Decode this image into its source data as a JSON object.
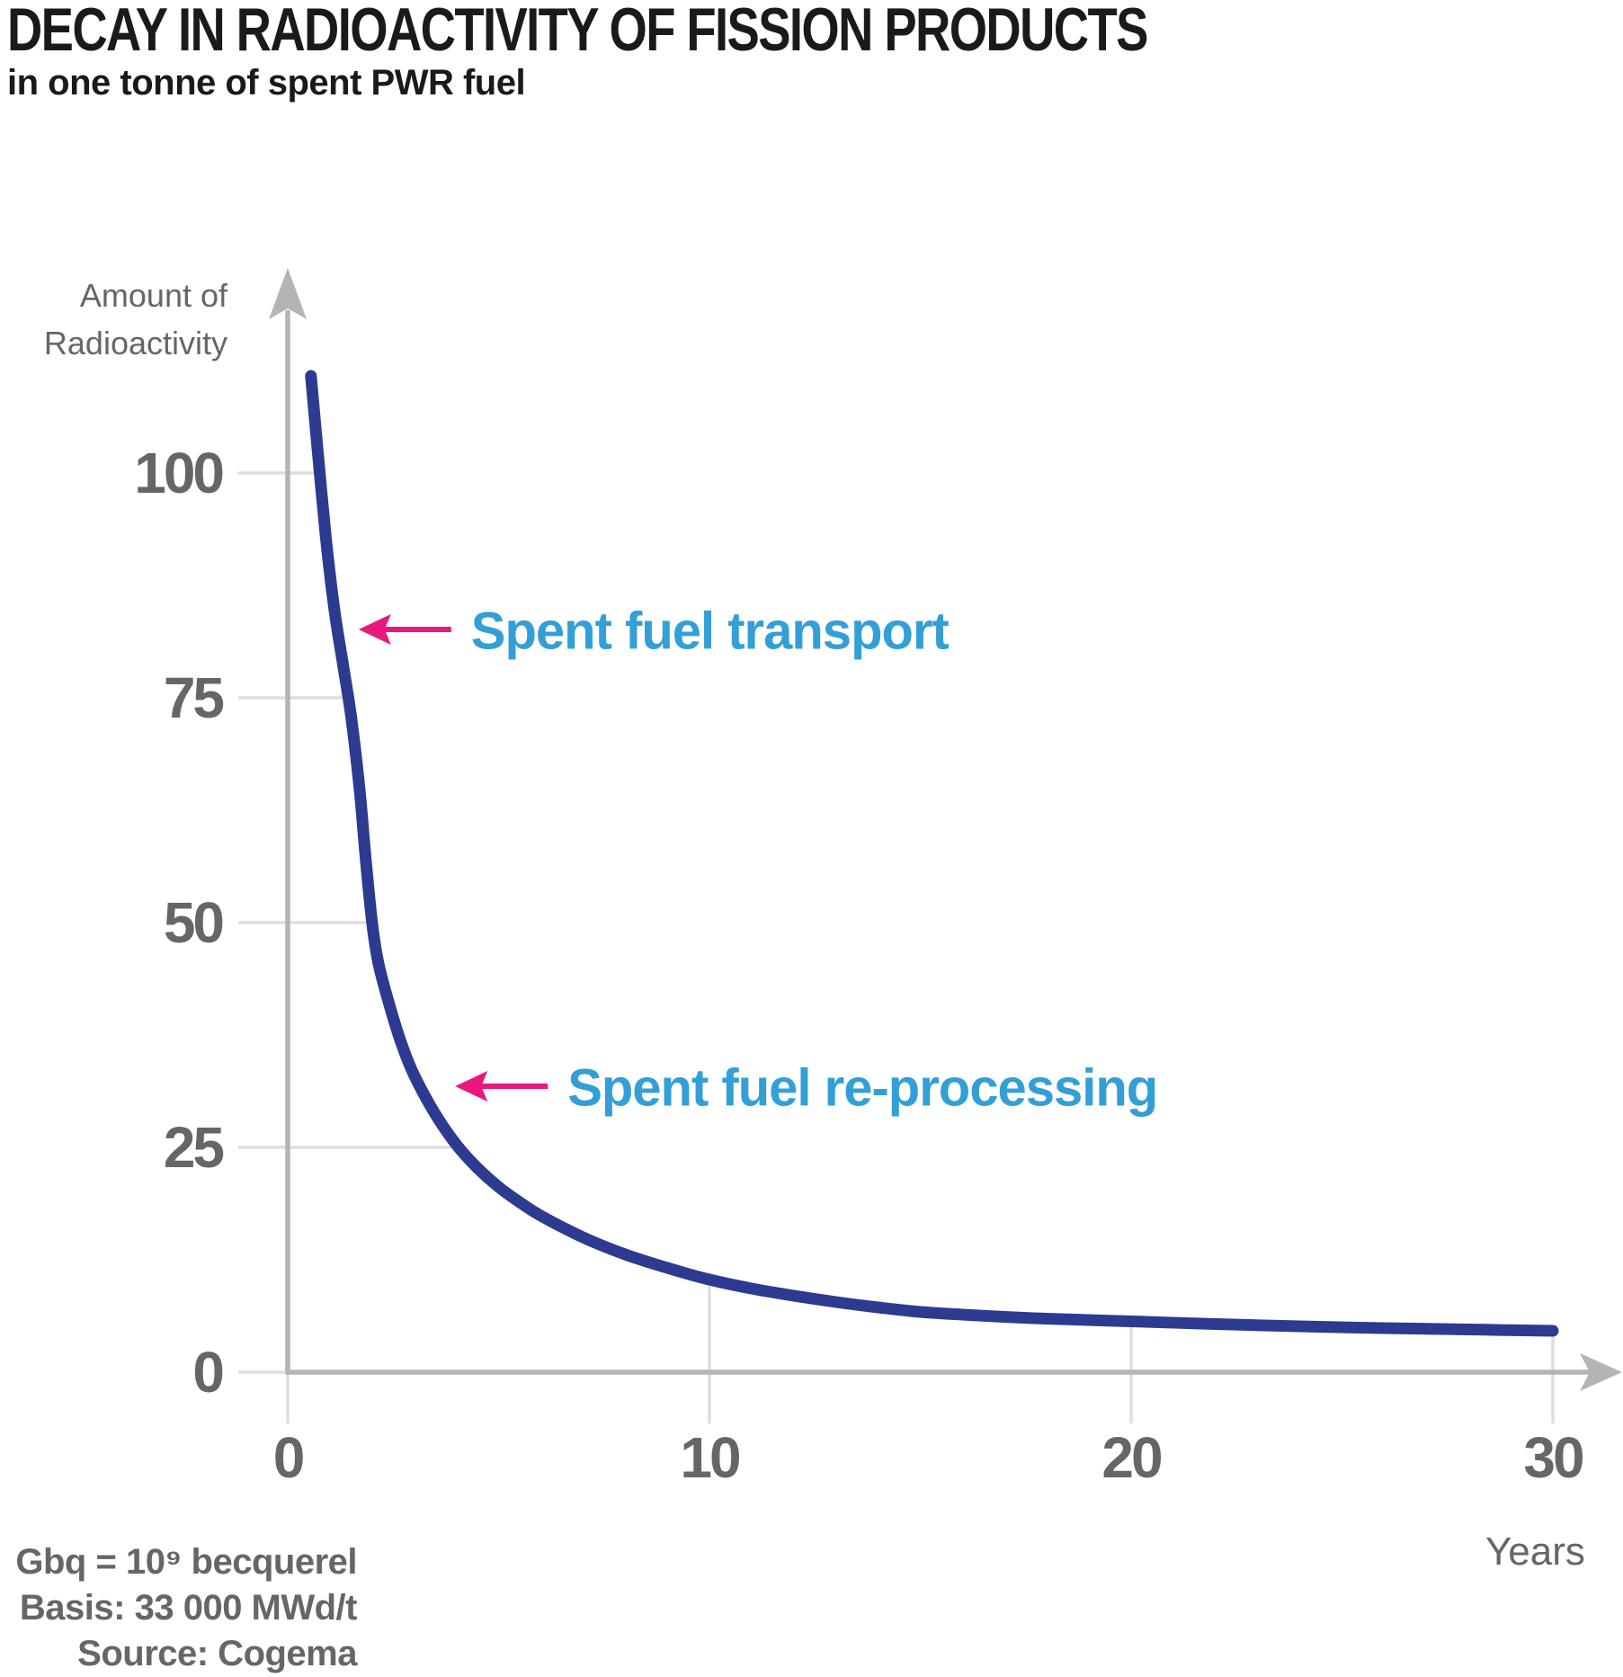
{
  "chart_data": {
    "type": "line",
    "title": "DECAY IN RADIOACTIVITY OF FISSION PRODUCTS",
    "subtitle": "in one tonne of spent PWR fuel",
    "xlabel": "Years",
    "ylabel_lines": [
      "Amount of",
      "Radioactivity"
    ],
    "x_ticks": [
      0,
      10,
      20,
      30
    ],
    "y_ticks": [
      0,
      25,
      50,
      75,
      100
    ],
    "xlim": [
      0,
      31.6
    ],
    "ylim": [
      0,
      118
    ],
    "grid": "tick lines only, drawn from axis margin up to the curve",
    "legend": "none",
    "series": [
      {
        "name": "Radioactivity of fission products",
        "color": "#2c3a90",
        "points": [
          [
            0.55,
            110.8
          ],
          [
            0.7,
            103
          ],
          [
            0.9,
            93
          ],
          [
            1.1,
            85
          ],
          [
            1.3,
            79
          ],
          [
            1.5,
            73
          ],
          [
            1.7,
            65
          ],
          [
            1.85,
            57
          ],
          [
            2.0,
            50
          ],
          [
            2.15,
            45.5
          ],
          [
            2.4,
            41
          ],
          [
            2.7,
            36.5
          ],
          [
            3.0,
            33
          ],
          [
            3.5,
            28.7
          ],
          [
            4.0,
            25.3
          ],
          [
            4.5,
            22.7
          ],
          [
            5.0,
            20.6
          ],
          [
            5.5,
            18.9
          ],
          [
            6.0,
            17.4
          ],
          [
            7.0,
            15.0
          ],
          [
            8.0,
            13.1
          ],
          [
            9.0,
            11.6
          ],
          [
            10.0,
            10.3
          ],
          [
            11.0,
            9.3
          ],
          [
            12.0,
            8.5
          ],
          [
            13.0,
            7.8
          ],
          [
            14.0,
            7.2
          ],
          [
            15.0,
            6.7
          ],
          [
            16.0,
            6.4
          ],
          [
            17.0,
            6.15
          ],
          [
            18.0,
            5.95
          ],
          [
            20.0,
            5.65
          ],
          [
            22.0,
            5.35
          ],
          [
            24.0,
            5.1
          ],
          [
            26.0,
            4.9
          ],
          [
            28.0,
            4.75
          ],
          [
            30.0,
            4.6
          ]
        ]
      }
    ],
    "annotations": [
      {
        "label": "Spent fuel transport",
        "x": 1.68,
        "y": 82.6
      },
      {
        "label": "Spent fuel re-processing",
        "x": 3.97,
        "y": 31.8
      }
    ],
    "footnotes": [
      "Gbq = 10⁹ becquerel",
      "Basis: 33 000 MWd/t",
      "Source: Cogema"
    ]
  },
  "colors": {
    "curve": "#2c3a90",
    "annotation_text": "#339fd7",
    "annotation_arrow": "#e8187e",
    "axis": "#b2b4b6",
    "grid": "#dddedf",
    "text_gray": "#64666a",
    "title_text": "#1a1a1a"
  }
}
